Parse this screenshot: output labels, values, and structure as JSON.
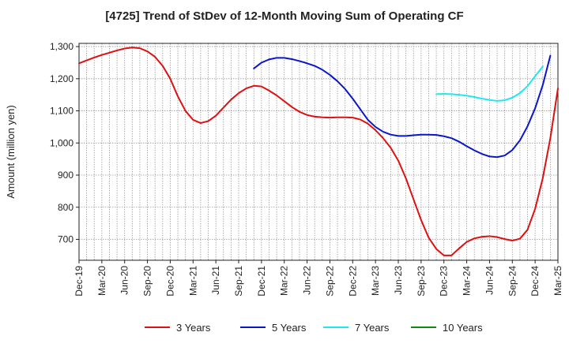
{
  "chart_data": {
    "type": "line",
    "title": "[4725]  Trend of StDev of 12-Month Moving Sum of Operating CF",
    "ylabel": "Amount (million yen)",
    "xlabel": "",
    "ylim": [
      635,
      1310
    ],
    "yticks": [
      700,
      800,
      900,
      1000,
      1100,
      1200,
      1300
    ],
    "ytick_labels": [
      "700",
      "800",
      "900",
      "1,000",
      "1,100",
      "1,200",
      "1,300"
    ],
    "x_start": "Dec-19",
    "x_ticks": [
      "Dec-19",
      "Mar-20",
      "Jun-20",
      "Sep-20",
      "Dec-20",
      "Mar-21",
      "Jun-21",
      "Sep-21",
      "Dec-21",
      "Mar-22",
      "Jun-22",
      "Sep-22",
      "Dec-22",
      "Mar-23",
      "Jun-23",
      "Sep-23",
      "Dec-23",
      "Mar-24",
      "Jun-24",
      "Sep-24",
      "Dec-24",
      "Mar-25"
    ],
    "grid": true,
    "legend_position": "bottom",
    "series": [
      {
        "name": "3 Years",
        "color": "#dd1111",
        "start": "Dec-19",
        "values": [
          1248,
          1257,
          1266,
          1274,
          1281,
          1288,
          1294,
          1297,
          1295,
          1285,
          1268,
          1240,
          1200,
          1145,
          1100,
          1072,
          1062,
          1068,
          1085,
          1110,
          1135,
          1155,
          1170,
          1178,
          1176,
          1163,
          1148,
          1130,
          1112,
          1097,
          1087,
          1082,
          1080,
          1079,
          1080,
          1080,
          1079,
          1073,
          1060,
          1040,
          1015,
          985,
          945,
          890,
          825,
          760,
          705,
          670,
          650,
          650,
          672,
          692,
          703,
          708,
          710,
          707,
          701,
          696,
          702,
          730,
          795,
          890,
          1015,
          1170
        ]
      },
      {
        "name": "5 Years",
        "color": "#0a16cc",
        "start": "Nov-21",
        "values": [
          1232,
          1250,
          1260,
          1265,
          1265,
          1261,
          1255,
          1248,
          1240,
          1228,
          1212,
          1192,
          1168,
          1138,
          1105,
          1072,
          1050,
          1035,
          1026,
          1022,
          1022,
          1024,
          1026,
          1026,
          1025,
          1021,
          1015,
          1004,
          990,
          977,
          966,
          958,
          956,
          961,
          978,
          1008,
          1052,
          1108,
          1180,
          1272
        ]
      },
      {
        "name": "7 Years",
        "color": "#1ee8ee",
        "start": "Nov-23",
        "values": [
          1152,
          1153,
          1152,
          1150,
          1147,
          1143,
          1138,
          1134,
          1131,
          1133,
          1141,
          1155,
          1177,
          1208,
          1238
        ]
      },
      {
        "name": "10 Years",
        "color": "#118811",
        "start": "Dec-24",
        "values": []
      }
    ]
  }
}
